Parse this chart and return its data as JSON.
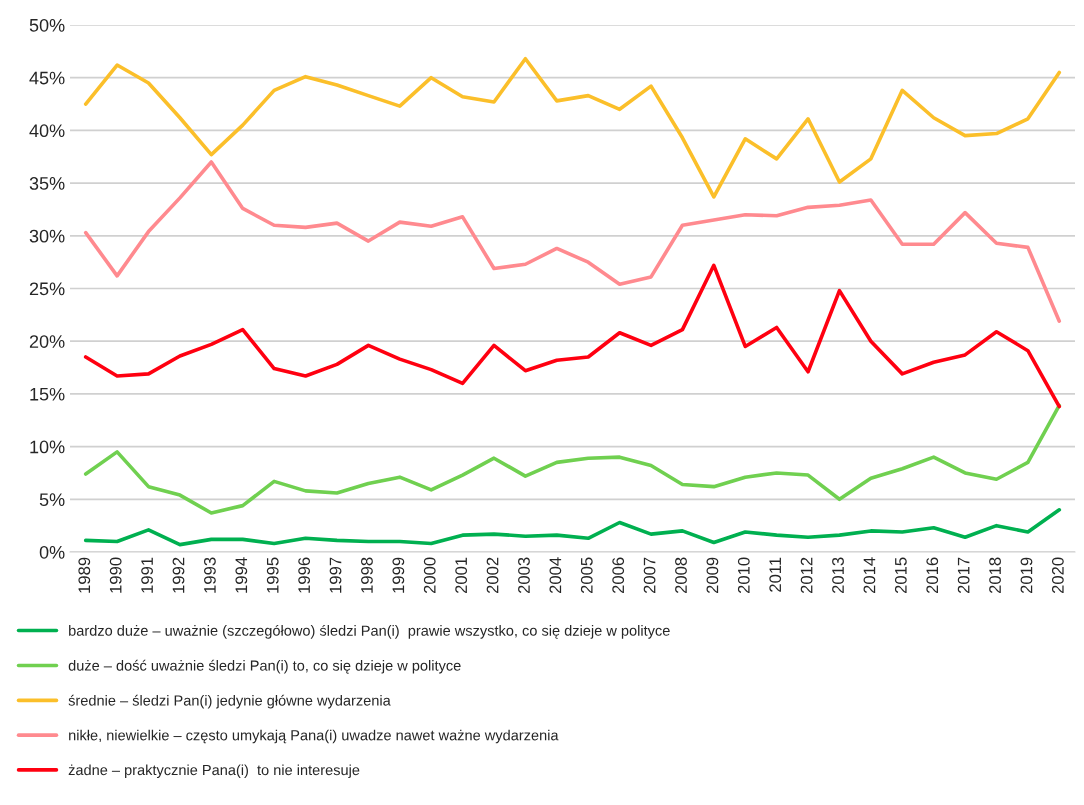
{
  "chart_data": {
    "type": "line",
    "categories": [
      "1989",
      "1990",
      "1991",
      "1992",
      "1993",
      "1994",
      "1995",
      "1996",
      "1997",
      "1998",
      "1999",
      "2000",
      "2001",
      "2002",
      "2003",
      "2004",
      "2005",
      "2006",
      "2007",
      "2008",
      "2009",
      "2010",
      "2011",
      "2012",
      "2013",
      "2014",
      "2015",
      "2016",
      "2017",
      "2018",
      "2019",
      "2020"
    ],
    "series": [
      {
        "name": "bardzo duże – uważnie (szczegółowo) śledzi Pan(i)  prawie wszystko, co się dzieje w polityce",
        "color": "#00b050",
        "values": [
          1.1,
          1.0,
          2.1,
          0.7,
          1.2,
          1.2,
          0.8,
          1.3,
          1.1,
          1.0,
          1.0,
          0.8,
          1.6,
          1.7,
          1.5,
          1.6,
          1.3,
          2.8,
          1.7,
          2.0,
          0.9,
          1.9,
          1.6,
          1.4,
          1.6,
          2.0,
          1.9,
          2.3,
          1.4,
          2.5,
          1.9,
          4.0
        ]
      },
      {
        "name": "duże – dość uważnie śledzi Pan(i) to, co się dzieje w polityce",
        "color": "#70d050",
        "values": [
          7.4,
          9.5,
          6.2,
          5.4,
          3.7,
          4.4,
          6.7,
          5.8,
          5.6,
          6.5,
          7.1,
          5.9,
          7.3,
          8.9,
          7.2,
          8.5,
          8.9,
          9.0,
          8.2,
          6.4,
          6.2,
          7.1,
          7.5,
          7.3,
          5.0,
          7.0,
          7.9,
          9.0,
          7.5,
          6.9,
          8.5,
          13.9
        ]
      },
      {
        "name": "średnie – śledzi Pan(i) jedynie główne wydarzenia",
        "color": "#fbbf2a",
        "values": [
          42.5,
          46.2,
          44.5,
          41.2,
          37.7,
          40.5,
          43.8,
          45.1,
          44.3,
          43.3,
          42.3,
          45.0,
          43.2,
          42.7,
          46.8,
          42.8,
          43.3,
          42.0,
          44.2,
          39.3,
          33.7,
          39.2,
          37.3,
          41.1,
          35.1,
          37.3,
          43.8,
          41.2,
          39.5,
          39.7,
          41.1,
          45.5
        ]
      },
      {
        "name": "nikłe, niewielkie – często umykają Pana(i) uwadze nawet ważne wydarzenia",
        "color": "#ff8a8f",
        "values": [
          30.3,
          26.2,
          30.4,
          33.6,
          37.0,
          32.6,
          31.0,
          30.8,
          31.2,
          29.5,
          31.3,
          30.9,
          31.8,
          26.9,
          27.3,
          28.8,
          27.5,
          25.4,
          26.1,
          31.0,
          31.5,
          32.0,
          31.9,
          32.7,
          32.9,
          33.4,
          29.2,
          29.2,
          32.2,
          29.3,
          28.9,
          21.9
        ]
      },
      {
        "name": "żadne – praktycznie Pana(i)  to nie interesuje",
        "color": "#ff0010",
        "values": [
          18.5,
          16.7,
          16.9,
          18.6,
          19.7,
          21.1,
          17.4,
          16.7,
          17.8,
          19.6,
          18.3,
          17.3,
          16.0,
          19.6,
          17.2,
          18.2,
          18.5,
          20.8,
          19.6,
          21.1,
          27.2,
          19.5,
          21.3,
          17.1,
          24.8,
          20.0,
          16.9,
          18.0,
          18.7,
          20.9,
          19.1,
          13.8
        ]
      }
    ],
    "ylim": [
      0,
      50
    ],
    "yticks": [
      {
        "value": 0,
        "label": "0%"
      },
      {
        "value": 5,
        "label": "5%"
      },
      {
        "value": 10,
        "label": "10%"
      },
      {
        "value": 15,
        "label": "15%"
      },
      {
        "value": 20,
        "label": "20%"
      },
      {
        "value": 25,
        "label": "25%"
      },
      {
        "value": 30,
        "label": "30%"
      },
      {
        "value": 35,
        "label": "35%"
      },
      {
        "value": 40,
        "label": "40%"
      },
      {
        "value": 45,
        "label": "45%"
      },
      {
        "value": 50,
        "label": "50%"
      }
    ],
    "grid": "y",
    "legend": "bottom",
    "marker": "none",
    "line_style": "solid"
  }
}
